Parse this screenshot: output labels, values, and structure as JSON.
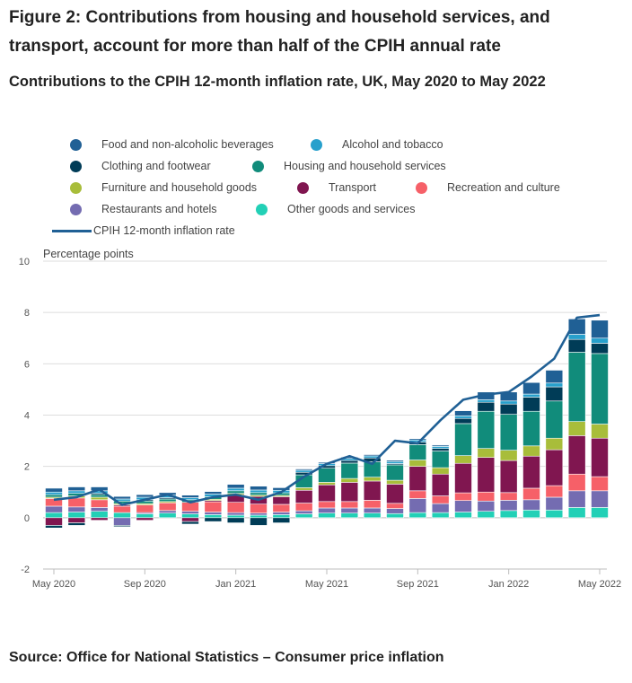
{
  "figure_title": "Figure 2: Contributions from housing and household services, and transport, account for more than half of the CPIH annual rate",
  "source": "Source: Office for National Statistics – Consumer price inflation",
  "chart_data": {
    "type": "bar",
    "stacked": true,
    "title": "Contributions to the CPIH 12-month inflation rate, UK, May 2020 to May 2022",
    "ylabel": "Percentage points",
    "xlabel": "",
    "ylim": [
      -2,
      10
    ],
    "yticks": [
      -2,
      0,
      2,
      4,
      6,
      8,
      10
    ],
    "xtick_labels": [
      "May 2020",
      "Sep 2020",
      "Jan 2021",
      "May 2021",
      "Sep 2021",
      "Jan 2022",
      "May 2022"
    ],
    "xtick_indices": [
      0,
      4,
      8,
      12,
      16,
      20,
      24
    ],
    "grid": "horizontal",
    "legend_position": "top",
    "categories": [
      "May 2020",
      "Jun 2020",
      "Jul 2020",
      "Aug 2020",
      "Sep 2020",
      "Oct 2020",
      "Nov 2020",
      "Dec 2020",
      "Jan 2021",
      "Feb 2021",
      "Mar 2021",
      "Apr 2021",
      "May 2021",
      "Jun 2021",
      "Jul 2021",
      "Aug 2021",
      "Sep 2021",
      "Oct 2021",
      "Nov 2021",
      "Dec 2021",
      "Jan 2022",
      "Feb 2022",
      "Mar 2022",
      "Apr 2022",
      "May 2022"
    ],
    "series": [
      {
        "name": "Other goods and services",
        "color": "#22d0b6",
        "values": [
          0.2,
          0.22,
          0.25,
          0.2,
          0.15,
          0.18,
          0.15,
          0.12,
          0.1,
          0.1,
          0.12,
          0.15,
          0.18,
          0.18,
          0.18,
          0.16,
          0.2,
          0.2,
          0.22,
          0.25,
          0.28,
          0.3,
          0.3,
          0.4,
          0.4
        ]
      },
      {
        "name": "Restaurants and hotels",
        "color": "#746cb1",
        "values": [
          0.25,
          0.2,
          0.15,
          -0.3,
          0.05,
          0.1,
          0.1,
          0.1,
          0.1,
          0.08,
          0.1,
          0.12,
          0.2,
          0.2,
          0.2,
          0.2,
          0.55,
          0.35,
          0.45,
          0.4,
          0.4,
          0.4,
          0.5,
          0.65,
          0.65
        ]
      },
      {
        "name": "Recreation and culture",
        "color": "#f66068",
        "values": [
          0.3,
          0.35,
          0.3,
          0.25,
          0.3,
          0.3,
          0.35,
          0.4,
          0.4,
          0.35,
          0.3,
          0.3,
          0.25,
          0.25,
          0.3,
          0.2,
          0.3,
          0.3,
          0.3,
          0.35,
          0.3,
          0.45,
          0.45,
          0.65,
          0.55
        ]
      },
      {
        "name": "Transport",
        "color": "#801650",
        "values": [
          -0.3,
          -0.2,
          -0.1,
          0.05,
          -0.1,
          0.0,
          -0.15,
          0.05,
          0.3,
          0.3,
          0.3,
          0.5,
          0.65,
          0.75,
          0.75,
          0.75,
          0.95,
          0.85,
          1.15,
          1.35,
          1.25,
          1.25,
          1.4,
          1.5,
          1.5
        ]
      },
      {
        "name": "Furniture and household goods",
        "color": "#a8bd3a",
        "values": [
          0.05,
          0.08,
          0.1,
          0.05,
          0.05,
          0.05,
          0.0,
          0.05,
          0.05,
          0.05,
          0.05,
          0.1,
          0.1,
          0.15,
          0.15,
          0.15,
          0.25,
          0.25,
          0.3,
          0.35,
          0.4,
          0.4,
          0.45,
          0.55,
          0.55
        ]
      },
      {
        "name": "Housing and household services",
        "color": "#118c7b",
        "values": [
          0.1,
          0.1,
          0.1,
          0.1,
          0.1,
          0.1,
          0.1,
          0.1,
          0.1,
          0.1,
          0.1,
          0.5,
          0.55,
          0.6,
          0.6,
          0.6,
          0.6,
          0.65,
          1.25,
          1.45,
          1.4,
          1.35,
          1.45,
          2.7,
          2.75
        ]
      },
      {
        "name": "Clothing and footwear",
        "color": "#003c57",
        "values": [
          -0.1,
          -0.1,
          0.05,
          -0.05,
          0.05,
          0.05,
          -0.1,
          -0.15,
          -0.2,
          -0.3,
          -0.2,
          0.1,
          0.1,
          0.1,
          0.15,
          0.05,
          0.1,
          0.1,
          0.2,
          0.35,
          0.4,
          0.55,
          0.55,
          0.5,
          0.4
        ]
      },
      {
        "name": "Alcohol and tobacco",
        "color": "#27a0cc",
        "values": [
          0.1,
          0.1,
          0.1,
          0.08,
          0.1,
          0.1,
          0.08,
          0.1,
          0.1,
          0.1,
          0.1,
          0.08,
          0.08,
          0.08,
          0.08,
          0.08,
          0.08,
          0.08,
          0.1,
          0.1,
          0.12,
          0.12,
          0.15,
          0.2,
          0.2
        ]
      },
      {
        "name": "Food and non-alcoholic beverages",
        "color": "#206095",
        "values": [
          0.15,
          0.15,
          0.15,
          0.1,
          0.1,
          0.1,
          0.1,
          0.1,
          0.15,
          0.15,
          0.1,
          0.05,
          0.05,
          0.05,
          0.05,
          0.05,
          0.05,
          0.05,
          0.2,
          0.3,
          0.35,
          0.45,
          0.5,
          0.6,
          0.7
        ]
      }
    ],
    "line": {
      "name": "CPIH 12-month inflation rate",
      "color": "#206095",
      "values": [
        0.7,
        0.8,
        1.1,
        0.5,
        0.7,
        0.9,
        0.6,
        0.8,
        0.9,
        0.7,
        1.0,
        1.6,
        2.1,
        2.4,
        2.1,
        3.0,
        2.9,
        3.8,
        4.6,
        4.8,
        4.9,
        5.5,
        6.2,
        7.8,
        7.9
      ]
    }
  },
  "legend_rows": [
    [
      {
        "label": "Food and non-alcoholic beverages",
        "color": "#206095"
      },
      {
        "label": "Alcohol and tobacco",
        "color": "#27a0cc"
      }
    ],
    [
      {
        "label": "Clothing and footwear",
        "color": "#003c57"
      },
      {
        "label": "Housing and household services",
        "color": "#118c7b"
      }
    ],
    [
      {
        "label": "Furniture and household goods",
        "color": "#a8bd3a"
      },
      {
        "label": "Transport",
        "color": "#801650"
      },
      {
        "label": "Recreation and culture",
        "color": "#f66068"
      }
    ],
    [
      {
        "label": "Restaurants and hotels",
        "color": "#746cb1"
      },
      {
        "label": "Other goods and services",
        "color": "#22d0b6"
      }
    ]
  ],
  "legend_line_label": "CPIH 12-month inflation rate"
}
